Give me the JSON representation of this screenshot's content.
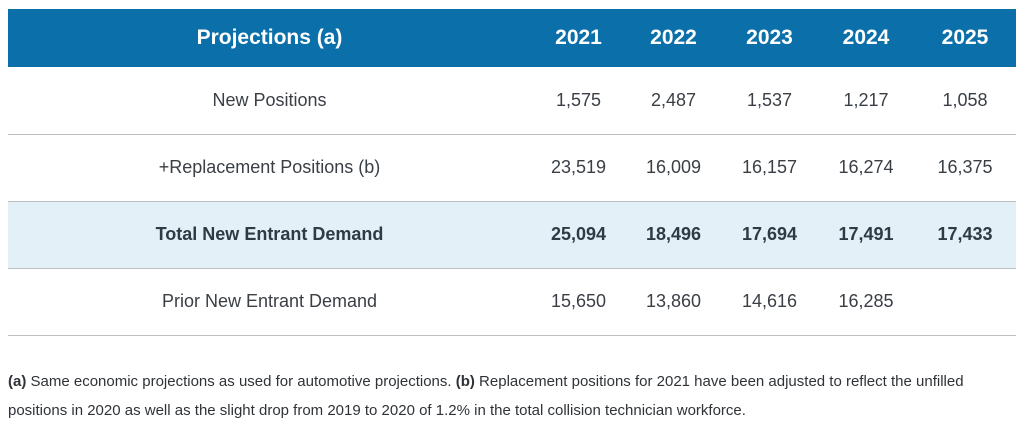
{
  "table": {
    "header": {
      "label": "Projections (a)",
      "years": [
        "2021",
        "2022",
        "2023",
        "2024",
        "2025"
      ]
    },
    "rows": [
      {
        "label": "New Positions",
        "values": [
          "1,575",
          "2,487",
          "1,537",
          "1,217",
          "1,058"
        ],
        "highlight": false
      },
      {
        "label": "+Replacement Positions (b)",
        "values": [
          "23,519",
          "16,009",
          "16,157",
          "16,274",
          "16,375"
        ],
        "highlight": false
      },
      {
        "label": "Total New Entrant Demand",
        "values": [
          "25,094",
          "18,496",
          "17,694",
          "17,491",
          "17,433"
        ],
        "highlight": true
      },
      {
        "label": "Prior New Entrant Demand",
        "values": [
          "15,650",
          "13,860",
          "14,616",
          "16,285",
          ""
        ],
        "highlight": false
      }
    ]
  },
  "notes": {
    "a_marker": "(a)",
    "a_text": " Same economic projections as used for automotive projections. ",
    "b_marker": "(b)",
    "b_text": " Replacement positions for 2021 have been adjusted to reflect the unfilled positions in 2020 as well as the slight drop from 2019 to 2020 of 1.2% in the total collision technician workforce."
  },
  "colors": {
    "header_bg": "#0b6faa",
    "highlight_row_bg": "#e3f0f8",
    "divider": "#b9bec3"
  }
}
